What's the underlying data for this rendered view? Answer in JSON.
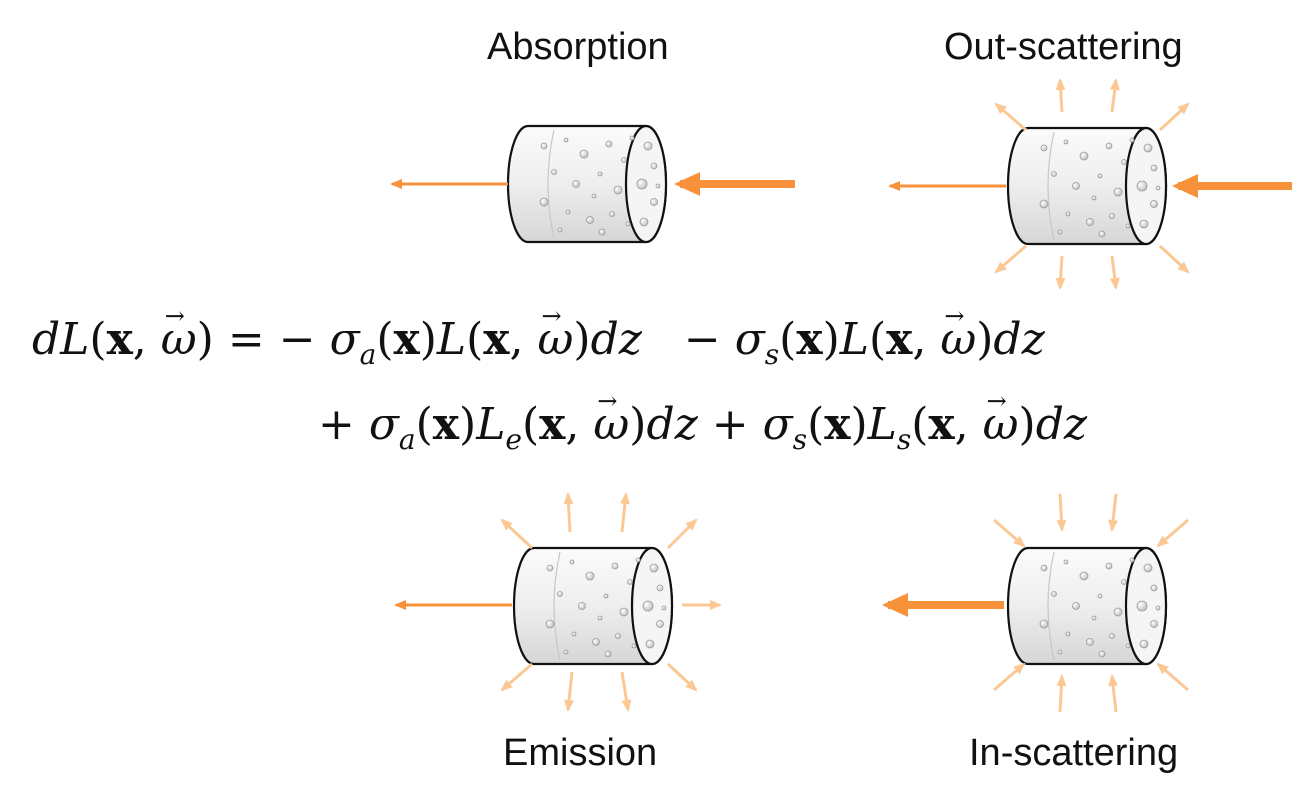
{
  "labels": {
    "absorption": "Absorption",
    "out_scattering": "Out-scattering",
    "emission": "Emission",
    "in_scattering": "In-scattering"
  },
  "equation": {
    "line1": {
      "lhs": "dL(x, ω) =",
      "term_absorption": "− σa(x)L(x, ω)dz",
      "term_out_scattering": "− σs(x)L(x, ω)dz"
    },
    "line2": {
      "term_emission": "+ σa(x)Le(x, ω)dz",
      "term_in_scattering": "+ σs(x)Ls(x, ω)dz"
    }
  },
  "colors": {
    "beam": "#f7923a",
    "scatter": "#fbc894",
    "medium_fill": "#ececec",
    "medium_stroke": "#111111"
  },
  "icons": [
    "medium-cylinder-icon",
    "light-ray-arrow-icon",
    "scatter-arrow-icon"
  ]
}
